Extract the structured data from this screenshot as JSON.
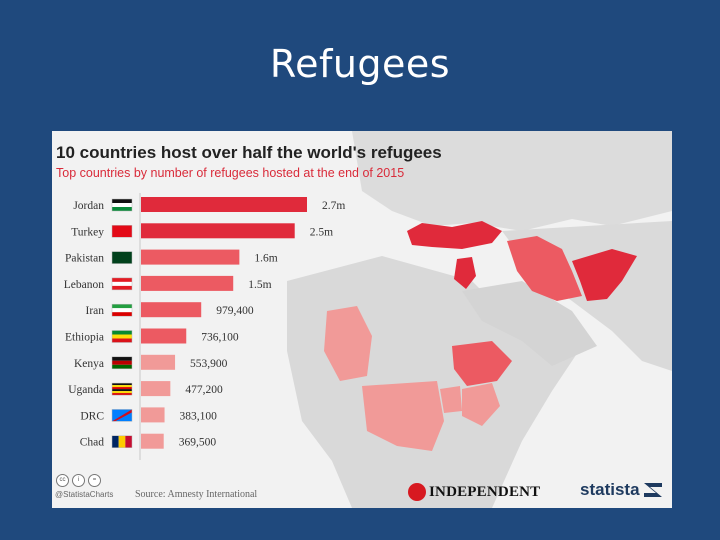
{
  "slide": {
    "title": "Refugees"
  },
  "infographic": {
    "footer": {
      "cc_icons": [
        "cc",
        "i",
        "="
      ],
      "handle": "@StatistaCharts",
      "source": "Source: Amnesty International"
    },
    "logos": {
      "independent": "INDEPENDENT",
      "statista": "statista"
    }
  },
  "colors": {
    "bar_dark": "#e02a3b",
    "bar_mid": "#ec5a62",
    "bar_light": "#f19a98",
    "map_land": "#d6d6d6"
  },
  "chart_data": {
    "type": "bar",
    "orientation": "horizontal",
    "title": "10 countries host over half the world's refugees",
    "subtitle": "Top countries by number of refugees hosted at the end of 2015",
    "categories": [
      "Jordan",
      "Turkey",
      "Pakistan",
      "Lebanon",
      "Iran",
      "Ethiopia",
      "Kenya",
      "Uganda",
      "DRC",
      "Chad"
    ],
    "values": [
      2700000,
      2500000,
      1600000,
      1500000,
      979400,
      736100,
      553900,
      477200,
      383100,
      369500
    ],
    "value_labels": [
      "2.7m",
      "2.5m",
      "1.6m",
      "1.5m",
      "979,400",
      "736,100",
      "553,900",
      "477,200",
      "383,100",
      "369,500"
    ],
    "flags": [
      "jordan-flag",
      "turkey-flag",
      "pakistan-flag",
      "lebanon-flag",
      "iran-flag",
      "ethiopia-flag",
      "kenya-flag",
      "uganda-flag",
      "drc-flag",
      "chad-flag"
    ],
    "xlim": [
      0,
      2700000
    ],
    "grid": false,
    "legend": "none"
  }
}
